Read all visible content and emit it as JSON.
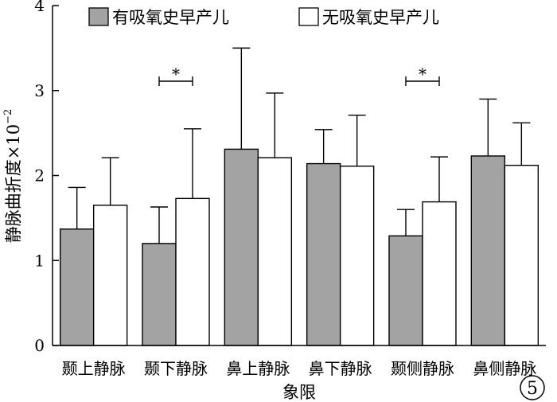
{
  "chart_data": {
    "type": "bar",
    "title": "",
    "xlabel": "象限",
    "ylabel": "静脉曲折度×10",
    "ylabel_exponent": "−2",
    "ylim": [
      0,
      4
    ],
    "yticks": [
      "0",
      "1",
      "2",
      "3",
      "4"
    ],
    "categories": [
      "颞上静脉",
      "颞下静脉",
      "鼻上静脉",
      "鼻下静脉",
      "颞侧静脉",
      "鼻侧静脉"
    ],
    "series": [
      {
        "name": "有吸氧史早产儿",
        "color": "#a3a3a3",
        "values": [
          1.37,
          1.2,
          2.31,
          2.14,
          1.29,
          2.23
        ],
        "error_upper": [
          1.86,
          1.63,
          3.5,
          2.54,
          1.6,
          2.9
        ]
      },
      {
        "name": "无吸氧史早产儿",
        "color": "#ffffff",
        "values": [
          1.65,
          1.73,
          2.21,
          2.11,
          1.69,
          2.12
        ],
        "error_upper": [
          2.21,
          2.55,
          2.97,
          2.71,
          2.22,
          2.62
        ]
      }
    ],
    "significance": [
      {
        "category_index": 1,
        "label": "*"
      },
      {
        "category_index": 4,
        "label": "*"
      }
    ],
    "legend_position": "top",
    "grid": false
  },
  "panel_label": "5"
}
